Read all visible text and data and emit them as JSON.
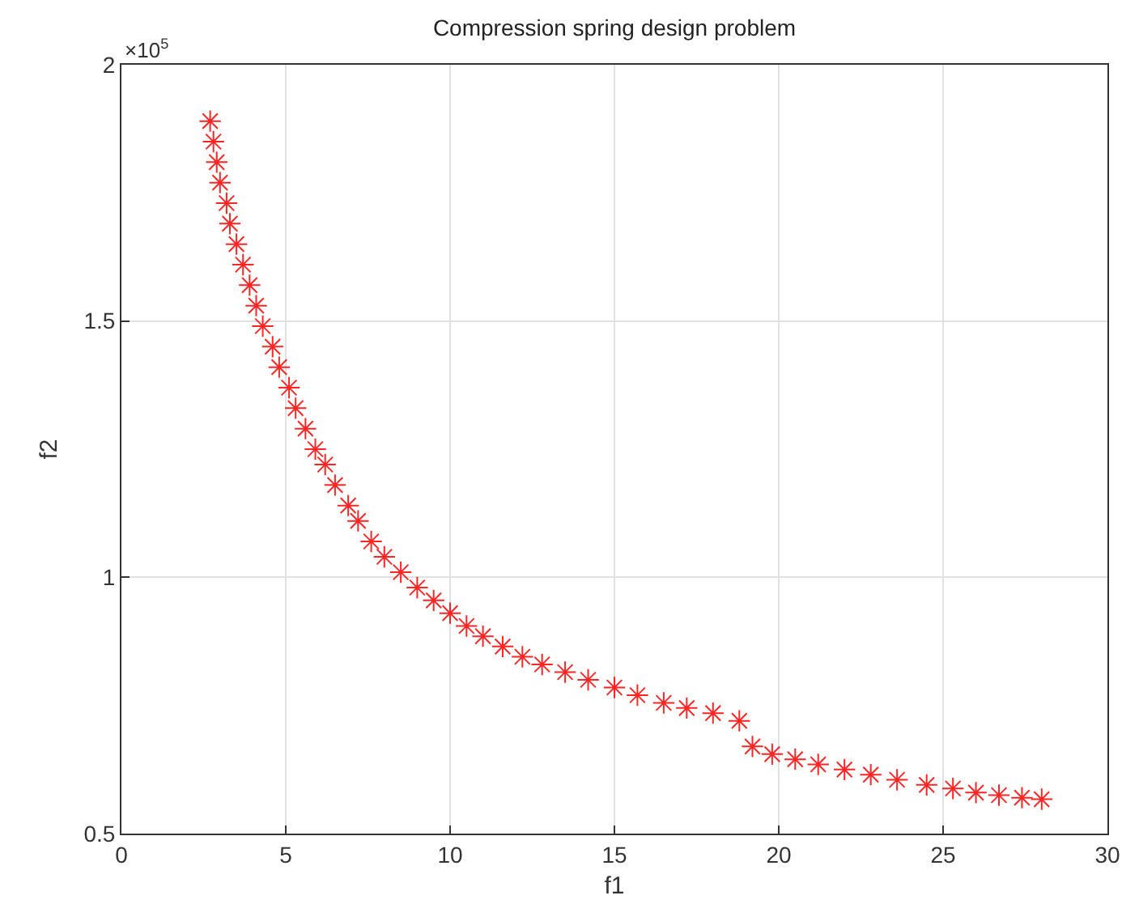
{
  "chart_data": {
    "type": "scatter",
    "title": "Compression spring design problem",
    "xlabel": "f1",
    "ylabel": "f2",
    "annotations": [
      "×10$^{5}$"
    ],
    "x": [
      2.7,
      2.8,
      2.9,
      3.0,
      3.2,
      3.3,
      3.5,
      3.7,
      3.9,
      4.1,
      4.3,
      4.6,
      4.8,
      5.1,
      5.3,
      5.6,
      5.9,
      6.2,
      6.5,
      6.9,
      7.2,
      7.6,
      8.0,
      8.5,
      9.0,
      9.5,
      10.0,
      10.5,
      11.0,
      11.6,
      12.2,
      12.8,
      13.5,
      14.2,
      15.0,
      15.7,
      16.5,
      17.2,
      18.0,
      18.8,
      19.2,
      19.8,
      20.5,
      21.2,
      22.0,
      22.8,
      23.6,
      24.5,
      25.3,
      26.0,
      26.7,
      27.4,
      28.0
    ],
    "series": [
      {
        "color": "#ff0000",
        "values": [
          1.89,
          1.85,
          1.81,
          1.77,
          1.73,
          1.69,
          1.65,
          1.61,
          1.57,
          1.53,
          1.49,
          1.45,
          1.41,
          1.37,
          1.33,
          1.29,
          1.25,
          1.22,
          1.18,
          1.14,
          1.11,
          1.07,
          1.04,
          1.01,
          0.98,
          0.955,
          0.93,
          0.905,
          0.885,
          0.865,
          0.845,
          0.83,
          0.815,
          0.8,
          0.785,
          0.77,
          0.755,
          0.745,
          0.735,
          0.72,
          0.67,
          0.655,
          0.645,
          0.635,
          0.625,
          0.615,
          0.605,
          0.595,
          0.588,
          0.58,
          0.575,
          0.57,
          0.567
        ]
      }
    ],
    "xlim": [
      0,
      30
    ],
    "xticks": [
      0,
      5,
      10,
      15,
      20,
      25,
      30
    ],
    "ylim": [
      0.5,
      2
    ],
    "yticks": [
      0.5,
      1,
      1.5,
      2
    ],
    "grid": true,
    "legend": false,
    "marker": "cross"
  }
}
